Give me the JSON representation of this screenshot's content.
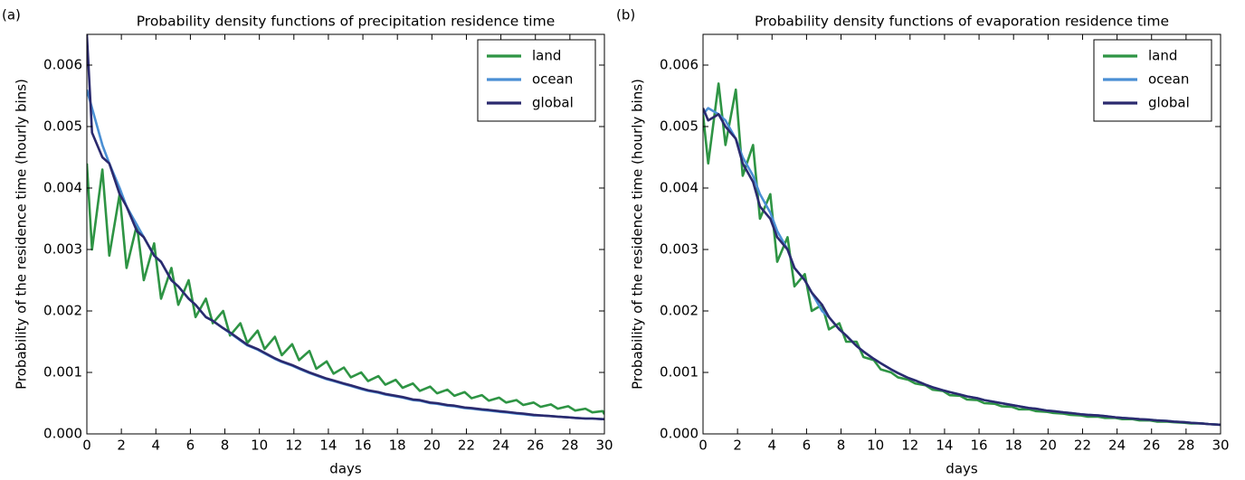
{
  "chart_data": [
    {
      "type": "line",
      "panel_label": "(a)",
      "title": "Probability density functions of precipitation residence time",
      "xlabel": "days",
      "ylabel": "Probability of the residence time (hourly bins)",
      "xlim": [
        0,
        30
      ],
      "ylim": [
        0,
        0.0065
      ],
      "xticks": [
        0,
        2,
        4,
        6,
        8,
        10,
        12,
        14,
        16,
        18,
        20,
        22,
        24,
        26,
        28,
        30
      ],
      "yticks": [
        {
          "value": 0,
          "label": "0.000"
        },
        {
          "value": 0.001,
          "label": "0.001"
        },
        {
          "value": 0.002,
          "label": "0.002"
        },
        {
          "value": 0.003,
          "label": "0.003"
        },
        {
          "value": 0.004,
          "label": "0.004"
        },
        {
          "value": 0.005,
          "label": "0.005"
        },
        {
          "value": 0.006,
          "label": "0.006"
        }
      ],
      "legend": "upper right",
      "x": [
        0,
        0.3,
        0.9,
        1.3,
        1.9,
        2.3,
        2.9,
        3.3,
        3.9,
        4.3,
        4.9,
        5.3,
        5.9,
        6.3,
        6.9,
        7.3,
        7.9,
        8.3,
        8.9,
        9.3,
        9.9,
        10.3,
        10.9,
        11.3,
        11.9,
        12.3,
        12.9,
        13.3,
        13.9,
        14.3,
        14.9,
        15.3,
        15.9,
        16.3,
        16.9,
        17.3,
        17.9,
        18.3,
        18.9,
        19.3,
        19.9,
        20.3,
        20.9,
        21.3,
        21.9,
        22.3,
        22.9,
        23.3,
        23.9,
        24.3,
        24.9,
        25.3,
        25.9,
        26.3,
        26.9,
        27.3,
        27.9,
        28.3,
        28.9,
        29.3,
        29.9,
        30
      ],
      "series": [
        {
          "name": "land",
          "color": "#2e9444",
          "values": [
            0.0044,
            0.003,
            0.0043,
            0.0029,
            0.0039,
            0.0027,
            0.0034,
            0.0025,
            0.0031,
            0.0022,
            0.0027,
            0.0021,
            0.0025,
            0.0019,
            0.0022,
            0.0018,
            0.002,
            0.0016,
            0.0018,
            0.00148,
            0.00168,
            0.00138,
            0.00158,
            0.00128,
            0.00146,
            0.0012,
            0.00135,
            0.00106,
            0.00118,
            0.00098,
            0.00108,
            0.00092,
            0.001,
            0.00086,
            0.00094,
            0.0008,
            0.00088,
            0.00075,
            0.00082,
            0.0007,
            0.00077,
            0.00066,
            0.00072,
            0.00062,
            0.00068,
            0.00058,
            0.00063,
            0.00054,
            0.00059,
            0.00051,
            0.00055,
            0.00047,
            0.00051,
            0.00044,
            0.00048,
            0.00041,
            0.00045,
            0.00038,
            0.00041,
            0.00035,
            0.00037,
            0.00032
          ]
        },
        {
          "name": "ocean",
          "color": "#4a8fd4",
          "values": [
            0.0056,
            0.0053,
            0.0047,
            0.0044,
            0.004,
            0.0037,
            0.0034,
            0.0032,
            0.0029,
            0.0028,
            0.0025,
            0.0024,
            0.0022,
            0.0021,
            0.0019,
            0.00184,
            0.00172,
            0.00164,
            0.00152,
            0.00144,
            0.00137,
            0.00131,
            0.00122,
            0.00117,
            0.00111,
            0.00106,
            0.00099,
            0.00095,
            0.00089,
            0.00086,
            0.00081,
            0.00078,
            0.00073,
            0.0007,
            0.00067,
            0.00064,
            0.00061,
            0.00059,
            0.00055,
            0.00054,
            0.0005,
            0.00049,
            0.00046,
            0.00045,
            0.00042,
            0.00041,
            0.00039,
            0.00038,
            0.00036,
            0.00035,
            0.00033,
            0.00032,
            0.0003,
            0.0003,
            0.00029,
            0.00028,
            0.00027,
            0.00026,
            0.00025,
            0.00025,
            0.00024,
            0.00024
          ]
        },
        {
          "name": "global",
          "color": "#2b2a6e",
          "values": [
            0.0065,
            0.0049,
            0.0045,
            0.0044,
            0.0039,
            0.0037,
            0.0033,
            0.0032,
            0.0029,
            0.0028,
            0.0025,
            0.0024,
            0.0022,
            0.0021,
            0.0019,
            0.00184,
            0.00172,
            0.00165,
            0.00153,
            0.00145,
            0.00138,
            0.00132,
            0.00123,
            0.00118,
            0.00112,
            0.00107,
            0.001,
            0.00096,
            0.0009,
            0.00087,
            0.00082,
            0.00079,
            0.00074,
            0.00071,
            0.00068,
            0.00065,
            0.00062,
            0.0006,
            0.00056,
            0.00055,
            0.00051,
            0.0005,
            0.00047,
            0.00046,
            0.00043,
            0.00042,
            0.0004,
            0.00039,
            0.00037,
            0.00036,
            0.00034,
            0.00033,
            0.00031,
            0.0003,
            0.00029,
            0.00028,
            0.00027,
            0.00026,
            0.00025,
            0.00025,
            0.00024,
            0.00024
          ]
        }
      ]
    },
    {
      "type": "line",
      "panel_label": "(b)",
      "title": "Probability density functions of evaporation residence time",
      "xlabel": "days",
      "ylabel": "Probability of the residence time (hourly bins)",
      "xlim": [
        0,
        30
      ],
      "ylim": [
        0,
        0.0065
      ],
      "xticks": [
        0,
        2,
        4,
        6,
        8,
        10,
        12,
        14,
        16,
        18,
        20,
        22,
        24,
        26,
        28,
        30
      ],
      "yticks": [
        {
          "value": 0,
          "label": "0.000"
        },
        {
          "value": 0.001,
          "label": "0.001"
        },
        {
          "value": 0.002,
          "label": "0.002"
        },
        {
          "value": 0.003,
          "label": "0.003"
        },
        {
          "value": 0.004,
          "label": "0.004"
        },
        {
          "value": 0.005,
          "label": "0.005"
        },
        {
          "value": 0.006,
          "label": "0.006"
        }
      ],
      "legend": "upper right",
      "x": [
        0,
        0.3,
        0.9,
        1.3,
        1.9,
        2.3,
        2.9,
        3.3,
        3.9,
        4.3,
        4.9,
        5.3,
        5.9,
        6.3,
        6.9,
        7.3,
        7.9,
        8.3,
        8.9,
        9.3,
        9.9,
        10.3,
        10.9,
        11.3,
        11.9,
        12.3,
        12.9,
        13.3,
        13.9,
        14.3,
        14.9,
        15.3,
        15.9,
        16.3,
        16.9,
        17.3,
        17.9,
        18.3,
        18.9,
        19.3,
        19.9,
        20.3,
        20.9,
        21.3,
        21.9,
        22.3,
        22.9,
        23.3,
        23.9,
        24.3,
        24.9,
        25.3,
        25.9,
        26.3,
        26.9,
        27.3,
        27.9,
        28.3,
        28.9,
        29.3,
        29.9,
        30
      ],
      "series": [
        {
          "name": "land",
          "color": "#2e9444",
          "values": [
            0.0052,
            0.0044,
            0.0057,
            0.0047,
            0.0056,
            0.0042,
            0.0047,
            0.0035,
            0.0039,
            0.0028,
            0.0032,
            0.0024,
            0.0026,
            0.002,
            0.0021,
            0.0017,
            0.0018,
            0.0015,
            0.0015,
            0.00125,
            0.0012,
            0.00105,
            0.001,
            0.00092,
            0.00088,
            0.00082,
            0.00079,
            0.00072,
            0.0007,
            0.00063,
            0.00062,
            0.00056,
            0.00055,
            0.0005,
            0.00049,
            0.00045,
            0.00044,
            0.0004,
            0.0004,
            0.00037,
            0.00036,
            0.00034,
            0.00033,
            0.00031,
            0.0003,
            0.00028,
            0.00028,
            0.00026,
            0.00026,
            0.00024,
            0.00024,
            0.00022,
            0.00022,
            0.0002,
            0.0002,
            0.00019,
            0.00018,
            0.00017,
            0.00017,
            0.00016,
            0.00015,
            0.00015
          ]
        },
        {
          "name": "ocean",
          "color": "#4a8fd4",
          "values": [
            0.0052,
            0.0053,
            0.0052,
            0.0051,
            0.0048,
            0.0045,
            0.0042,
            0.0039,
            0.0036,
            0.0033,
            0.003,
            0.0027,
            0.0025,
            0.0023,
            0.002,
            0.0019,
            0.0017,
            0.0016,
            0.00143,
            0.00134,
            0.00122,
            0.00115,
            0.00105,
            0.00099,
            0.00091,
            0.00087,
            0.0008,
            0.00076,
            0.00071,
            0.00068,
            0.00064,
            0.00061,
            0.00058,
            0.00055,
            0.00052,
            0.0005,
            0.00047,
            0.00045,
            0.00042,
            0.00041,
            0.00038,
            0.00037,
            0.00035,
            0.00034,
            0.00032,
            0.00031,
            0.0003,
            0.00029,
            0.00027,
            0.00026,
            0.00025,
            0.00024,
            0.00023,
            0.00022,
            0.00021,
            0.0002,
            0.00019,
            0.00018,
            0.00017,
            0.00016,
            0.00015,
            0.00015
          ]
        },
        {
          "name": "global",
          "color": "#2b2a6e",
          "values": [
            0.0053,
            0.0051,
            0.0052,
            0.005,
            0.0048,
            0.0044,
            0.0041,
            0.0037,
            0.0035,
            0.0032,
            0.003,
            0.0027,
            0.0025,
            0.0023,
            0.0021,
            0.0019,
            0.0017,
            0.0016,
            0.00143,
            0.00134,
            0.00122,
            0.00115,
            0.00105,
            0.00099,
            0.00091,
            0.00087,
            0.0008,
            0.00076,
            0.00071,
            0.00068,
            0.00064,
            0.00061,
            0.00058,
            0.00055,
            0.00052,
            0.0005,
            0.00047,
            0.00045,
            0.00042,
            0.00041,
            0.00038,
            0.00037,
            0.00035,
            0.00034,
            0.00032,
            0.00031,
            0.0003,
            0.00029,
            0.00027,
            0.00026,
            0.00025,
            0.00024,
            0.00023,
            0.00022,
            0.00021,
            0.0002,
            0.00019,
            0.00018,
            0.00017,
            0.00016,
            0.00015,
            0.00015
          ]
        }
      ]
    }
  ]
}
